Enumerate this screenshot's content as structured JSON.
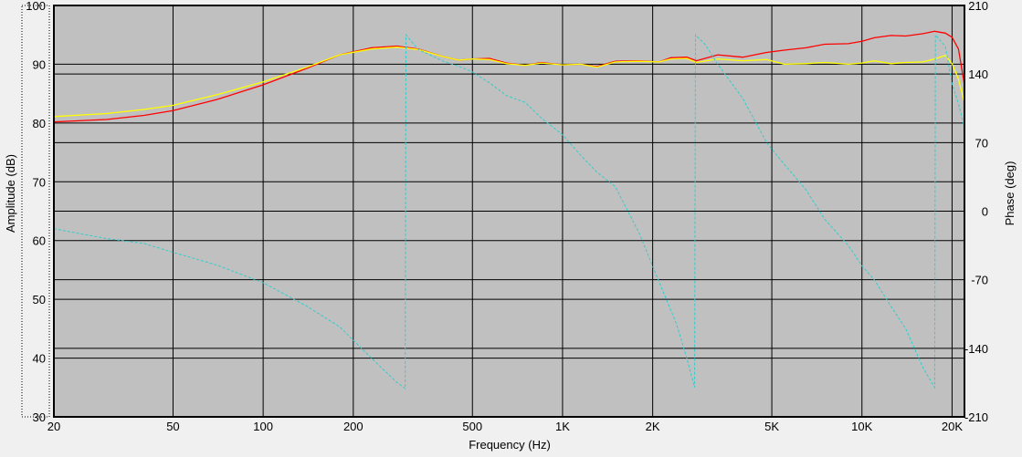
{
  "chart_data": {
    "type": "line",
    "xlabel": "Frequency (Hz)",
    "ylabel_left": "Amplitude (dB)",
    "ylabel_right": "Phase (deg)",
    "x_scale": "log",
    "xlim": [
      20,
      22000
    ],
    "ylim_left": [
      30,
      100
    ],
    "ylim_right": [
      -210,
      210
    ],
    "x_ticks": [
      {
        "v": 20,
        "label": "20"
      },
      {
        "v": 50,
        "label": "50"
      },
      {
        "v": 100,
        "label": "100"
      },
      {
        "v": 200,
        "label": "200"
      },
      {
        "v": 500,
        "label": "500"
      },
      {
        "v": 1000,
        "label": "1K"
      },
      {
        "v": 2000,
        "label": "2K"
      },
      {
        "v": 5000,
        "label": "5K"
      },
      {
        "v": 10000,
        "label": "10K"
      },
      {
        "v": 20000,
        "label": "20K"
      }
    ],
    "y_ticks_left": [
      {
        "v": 30,
        "label": "30"
      },
      {
        "v": 40,
        "label": "40"
      },
      {
        "v": 50,
        "label": "50"
      },
      {
        "v": 60,
        "label": "60"
      },
      {
        "v": 70,
        "label": "70"
      },
      {
        "v": 80,
        "label": "80"
      },
      {
        "v": 90,
        "label": "90"
      },
      {
        "v": 100,
        "label": "100"
      }
    ],
    "y_ticks_right": [
      {
        "v": -210,
        "label": "-210"
      },
      {
        "v": -140,
        "label": "-140"
      },
      {
        "v": -70,
        "label": "-70"
      },
      {
        "v": 0,
        "label": "0"
      },
      {
        "v": 70,
        "label": "70"
      },
      {
        "v": 140,
        "label": "140"
      },
      {
        "v": 210,
        "label": "210"
      }
    ],
    "grid": true,
    "series": [
      {
        "axis": "left",
        "color": "#ff0000",
        "points": [
          [
            20,
            80.2
          ],
          [
            30,
            80.6
          ],
          [
            40,
            81.3
          ],
          [
            50,
            82.1
          ],
          [
            70,
            84.0
          ],
          [
            100,
            86.5
          ],
          [
            140,
            89.3
          ],
          [
            180,
            91.6
          ],
          [
            230,
            92.8
          ],
          [
            280,
            93.1
          ],
          [
            330,
            92.6
          ],
          [
            400,
            91.3
          ],
          [
            450,
            90.7
          ],
          [
            500,
            90.9
          ],
          [
            570,
            91.0
          ],
          [
            650,
            90.2
          ],
          [
            750,
            89.8
          ],
          [
            850,
            90.3
          ],
          [
            1000,
            89.9
          ],
          [
            1150,
            90.0
          ],
          [
            1300,
            89.6
          ],
          [
            1500,
            90.5
          ],
          [
            1800,
            90.6
          ],
          [
            2100,
            90.4
          ],
          [
            2300,
            91.1
          ],
          [
            2600,
            91.2
          ],
          [
            2800,
            90.6
          ],
          [
            3300,
            91.6
          ],
          [
            4000,
            91.2
          ],
          [
            4800,
            92.0
          ],
          [
            5500,
            92.4
          ],
          [
            6500,
            92.8
          ],
          [
            7500,
            93.4
          ],
          [
            9000,
            93.5
          ],
          [
            10000,
            93.9
          ],
          [
            11000,
            94.5
          ],
          [
            12500,
            94.9
          ],
          [
            14000,
            94.8
          ],
          [
            16000,
            95.2
          ],
          [
            17500,
            95.6
          ],
          [
            19000,
            95.3
          ],
          [
            20000,
            94.6
          ],
          [
            21000,
            92.6
          ],
          [
            22000,
            86.5
          ]
        ]
      },
      {
        "axis": "left",
        "color": "#ffff00",
        "points": [
          [
            20,
            81.1
          ],
          [
            30,
            81.6
          ],
          [
            40,
            82.3
          ],
          [
            50,
            83.0
          ],
          [
            70,
            84.8
          ],
          [
            100,
            87.0
          ],
          [
            140,
            89.5
          ],
          [
            180,
            91.6
          ],
          [
            230,
            92.6
          ],
          [
            280,
            92.9
          ],
          [
            330,
            92.5
          ],
          [
            400,
            91.3
          ],
          [
            450,
            90.7
          ],
          [
            500,
            90.9
          ],
          [
            570,
            90.8
          ],
          [
            650,
            90.1
          ],
          [
            750,
            89.8
          ],
          [
            850,
            90.2
          ],
          [
            1000,
            89.9
          ],
          [
            1150,
            90.0
          ],
          [
            1300,
            89.5
          ],
          [
            1500,
            90.4
          ],
          [
            1800,
            90.5
          ],
          [
            2100,
            90.4
          ],
          [
            2300,
            90.9
          ],
          [
            2600,
            91.0
          ],
          [
            2800,
            90.3
          ],
          [
            3300,
            90.9
          ],
          [
            4000,
            90.6
          ],
          [
            4800,
            90.8
          ],
          [
            5500,
            90.0
          ],
          [
            6500,
            90.1
          ],
          [
            7500,
            90.3
          ],
          [
            9000,
            90.0
          ],
          [
            10000,
            90.2
          ],
          [
            11000,
            90.6
          ],
          [
            12500,
            90.1
          ],
          [
            14000,
            90.3
          ],
          [
            16000,
            90.4
          ],
          [
            17500,
            90.9
          ],
          [
            19000,
            91.5
          ],
          [
            20000,
            90.1
          ],
          [
            21000,
            87.5
          ],
          [
            22000,
            83.5
          ]
        ]
      },
      {
        "axis": "right",
        "color": "#33cccc",
        "points": [
          [
            20,
            -18
          ],
          [
            30,
            -28
          ],
          [
            40,
            -33
          ],
          [
            50,
            -42
          ],
          [
            70,
            -55
          ],
          [
            100,
            -73
          ],
          [
            140,
            -97
          ],
          [
            180,
            -118
          ],
          [
            230,
            -150
          ],
          [
            280,
            -175
          ],
          [
            298,
            -181
          ],
          [
            300,
            180
          ],
          [
            330,
            165
          ],
          [
            400,
            153
          ],
          [
            450,
            148
          ],
          [
            500,
            142
          ],
          [
            570,
            131
          ],
          [
            650,
            118
          ],
          [
            750,
            111
          ],
          [
            850,
            95
          ],
          [
            1000,
            78
          ],
          [
            1150,
            57
          ],
          [
            1300,
            40
          ],
          [
            1500,
            25
          ],
          [
            1800,
            -22
          ],
          [
            2100,
            -72
          ],
          [
            2400,
            -115
          ],
          [
            2600,
            -150
          ],
          [
            2760,
            -180
          ],
          [
            2780,
            180
          ],
          [
            3000,
            170
          ],
          [
            3300,
            150
          ],
          [
            4000,
            115
          ],
          [
            4800,
            70
          ],
          [
            5500,
            48
          ],
          [
            6500,
            22
          ],
          [
            7500,
            -8
          ],
          [
            9000,
            -35
          ],
          [
            10000,
            -56
          ],
          [
            11000,
            -70
          ],
          [
            12500,
            -97
          ],
          [
            14000,
            -120
          ],
          [
            16000,
            -160
          ],
          [
            17500,
            -180
          ],
          [
            17600,
            180
          ],
          [
            19000,
            168
          ],
          [
            20000,
            130
          ],
          [
            21000,
            110
          ],
          [
            22000,
            85
          ]
        ]
      }
    ]
  }
}
